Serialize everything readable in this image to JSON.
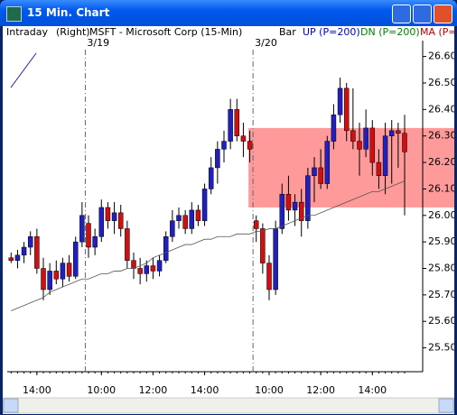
{
  "window_title": "15 Min. Chart",
  "chart_data": {
    "type": "candlestick",
    "header": [
      "Intraday",
      "(Right)",
      "MSFT - Microsoft Corp  (15-Min)"
    ],
    "legend": [
      {
        "text": "Bar",
        "color": "#000000"
      },
      {
        "text": "UP (P=200)",
        "color": "#0000c0"
      },
      {
        "text": "DN (P=200)",
        "color": "#008000"
      },
      {
        "text": "MA (P=",
        "color": "#c00000"
      }
    ],
    "up_color": "#2020c0",
    "down_color": "#d01010",
    "ma_color": "#555555",
    "xlim": [
      -0.6,
      63.8
    ],
    "xticks": [
      {
        "value": 4,
        "label": "14:00"
      },
      {
        "value": 14,
        "label": "10:00"
      },
      {
        "value": 22,
        "label": "12:00"
      },
      {
        "value": 30,
        "label": "14:00"
      },
      {
        "value": 40,
        "label": "10:00"
      },
      {
        "value": 48,
        "label": "12:00"
      },
      {
        "value": 56,
        "label": "14:00"
      }
    ],
    "day_breaks": [
      {
        "value": 11.5,
        "label": "3/19"
      },
      {
        "value": 37.5,
        "label": "3/20"
      }
    ],
    "ylim": [
      25.41,
      26.66
    ],
    "yticks": [
      {
        "value": 25.5,
        "label": "25.50"
      },
      {
        "value": 25.6,
        "label": "25.60"
      },
      {
        "value": 25.7,
        "label": "25.70"
      },
      {
        "value": 25.8,
        "label": "25.80"
      },
      {
        "value": 25.9,
        "label": "25.90"
      },
      {
        "value": 26.0,
        "label": "26.00"
      },
      {
        "value": 26.1,
        "label": "26.10"
      },
      {
        "value": 26.2,
        "label": "26.20"
      },
      {
        "value": 26.3,
        "label": "26.30"
      },
      {
        "value": 26.4,
        "label": "26.40"
      },
      {
        "value": 26.5,
        "label": "26.50"
      },
      {
        "value": 26.6,
        "label": "26.60"
      }
    ],
    "highlight": {
      "x": 36.8,
      "range": [
        26.03,
        26.33
      ],
      "color": "#ff9a9a"
    },
    "open": [
      25.84,
      25.83,
      25.85,
      25.88,
      25.92,
      25.8,
      25.72,
      25.79,
      25.76,
      25.82,
      25.77,
      25.9,
      25.97,
      25.88,
      25.92,
      26.03,
      25.98,
      26.01,
      25.95,
      25.83,
      25.8,
      25.78,
      25.81,
      25.79,
      25.83,
      25.92,
      25.98,
      26.0,
      25.95,
      26.02,
      25.98,
      26.1,
      26.18,
      26.25,
      26.28,
      26.4,
      26.3,
      26.28,
      25.98,
      25.95,
      25.82,
      25.72,
      25.95,
      26.08,
      26.02,
      26.05,
      25.98,
      26.15,
      26.18,
      26.12,
      26.28,
      26.38,
      26.48,
      26.32,
      26.28,
      26.25,
      26.33,
      26.2,
      26.15,
      26.3,
      26.32,
      26.31
    ],
    "high": [
      25.86,
      25.87,
      25.9,
      25.94,
      25.95,
      25.84,
      25.82,
      25.83,
      25.84,
      25.85,
      25.92,
      26.05,
      26.0,
      25.95,
      26.06,
      26.05,
      26.05,
      26.04,
      25.98,
      25.86,
      25.84,
      25.83,
      25.84,
      25.85,
      25.94,
      26.02,
      26.03,
      26.02,
      26.05,
      26.04,
      26.12,
      26.22,
      26.28,
      26.32,
      26.44,
      26.44,
      26.35,
      26.32,
      26.0,
      25.97,
      25.85,
      25.98,
      26.12,
      26.15,
      26.08,
      26.1,
      26.18,
      26.22,
      26.25,
      26.3,
      26.42,
      26.52,
      26.5,
      26.48,
      26.35,
      26.4,
      26.36,
      26.25,
      26.35,
      26.36,
      26.35,
      26.38
    ],
    "low": [
      25.82,
      25.8,
      25.82,
      25.85,
      25.78,
      25.68,
      25.7,
      25.74,
      25.73,
      25.75,
      25.76,
      25.88,
      25.84,
      25.85,
      25.9,
      25.95,
      25.93,
      25.92,
      25.8,
      25.76,
      25.74,
      25.75,
      25.76,
      25.77,
      25.82,
      25.9,
      25.95,
      25.93,
      25.93,
      25.96,
      25.96,
      26.08,
      26.12,
      26.2,
      26.25,
      26.28,
      26.22,
      26.2,
      25.9,
      25.78,
      25.68,
      25.7,
      25.93,
      25.98,
      25.96,
      25.92,
      25.95,
      26.05,
      26.1,
      26.1,
      26.25,
      26.35,
      26.28,
      26.25,
      26.15,
      26.22,
      26.15,
      26.1,
      26.08,
      26.12,
      26.18,
      26.0
    ],
    "close": [
      25.83,
      25.85,
      25.88,
      25.92,
      25.8,
      25.72,
      25.79,
      25.76,
      25.82,
      25.77,
      25.9,
      26.0,
      25.88,
      25.92,
      26.03,
      25.98,
      26.01,
      25.95,
      25.83,
      25.8,
      25.78,
      25.81,
      25.79,
      25.83,
      25.92,
      25.98,
      26.0,
      25.95,
      26.02,
      25.98,
      26.1,
      26.18,
      26.25,
      26.28,
      26.4,
      26.3,
      26.28,
      26.25,
      25.95,
      25.82,
      25.72,
      25.95,
      26.08,
      26.02,
      26.05,
      25.98,
      26.15,
      26.18,
      26.12,
      26.28,
      26.38,
      26.48,
      26.32,
      26.28,
      26.25,
      26.33,
      26.2,
      26.15,
      26.3,
      26.32,
      26.31,
      26.24
    ],
    "ma": [
      25.64,
      25.65,
      25.66,
      25.67,
      25.68,
      25.69,
      25.71,
      25.72,
      25.73,
      25.74,
      25.75,
      25.76,
      25.76,
      25.77,
      25.78,
      25.78,
      25.79,
      25.79,
      25.8,
      25.8,
      25.81,
      25.82,
      25.84,
      25.85,
      25.86,
      25.87,
      25.88,
      25.89,
      25.89,
      25.9,
      25.91,
      25.91,
      25.92,
      25.92,
      25.92,
      25.93,
      25.93,
      25.93,
      25.94,
      25.94,
      25.95,
      25.95,
      25.96,
      25.97,
      25.98,
      25.99,
      26.0,
      26.0,
      26.01,
      26.02,
      26.03,
      26.04,
      26.05,
      26.06,
      26.07,
      26.08,
      26.09,
      26.09,
      26.1,
      26.11,
      26.12,
      26.13
    ]
  }
}
